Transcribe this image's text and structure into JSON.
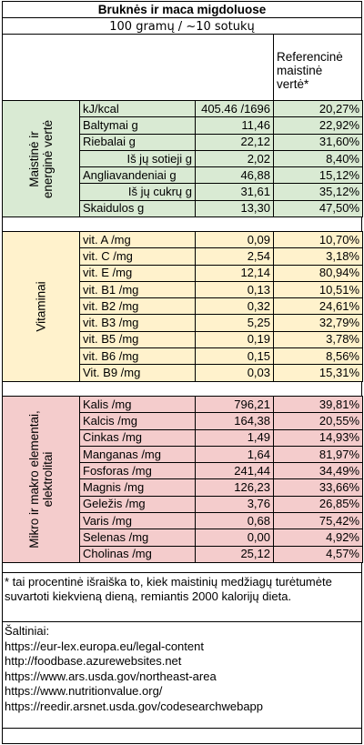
{
  "title": "Bruknės ir maca migdoluose",
  "subtitle": "100 gramų / ~10 sotukų",
  "ref_header": "Referencinė\nmaistinė\nvertė*",
  "groups": {
    "energy": "Maistinė ir\nenerginė vertė",
    "vitamins": "Vitaminai",
    "minerals": "Mikro ir makro elementai,\nelektrolitai"
  },
  "energy_rows": [
    {
      "name": "kJ/kcal",
      "value": "405.46 /1696",
      "pct": "20,27%",
      "indent": false
    },
    {
      "name": "Baltymai g",
      "value": "11,46",
      "pct": "22,92%",
      "indent": false
    },
    {
      "name": "Riebalai g",
      "value": "22,12",
      "pct": "31,60%",
      "indent": false
    },
    {
      "name": "Iš jų sotieji g",
      "value": "2,02",
      "pct": "8,40%",
      "indent": true
    },
    {
      "name": "Angliavandeniai g",
      "value": "46,88",
      "pct": "15,12%",
      "indent": false
    },
    {
      "name": "Iš jų cukrų g",
      "value": "31,61",
      "pct": "35,12%",
      "indent": true
    },
    {
      "name": "Skaidulos g",
      "value": "13,30",
      "pct": "47,50%",
      "indent": false
    }
  ],
  "vitamin_rows": [
    {
      "name": "vit. A /mg",
      "value": "0,09",
      "pct": "10,70%"
    },
    {
      "name": "vit. C /mg",
      "value": "2,54",
      "pct": "3,18%"
    },
    {
      "name": "vit. E /mg",
      "value": "12,14",
      "pct": "80,94%"
    },
    {
      "name": "vit. B1 /mg",
      "value": "0,13",
      "pct": "10,51%"
    },
    {
      "name": "vit. B2 /mg",
      "value": "0,32",
      "pct": "24,61%"
    },
    {
      "name": "vit. B3  /mg",
      "value": "5,25",
      "pct": "32,79%"
    },
    {
      "name": "vit. B5  /mg",
      "value": "0,19",
      "pct": "3,78%"
    },
    {
      "name": "vit. B6  /mg",
      "value": "0,15",
      "pct": "8,56%"
    },
    {
      "name": "Vit. B9 /mg",
      "value": "0,03",
      "pct": "15,31%"
    }
  ],
  "mineral_rows": [
    {
      "name": "Kalis /mg",
      "value": "796,21",
      "pct": "39,81%"
    },
    {
      "name": "Kalcis  /mg",
      "value": "164,38",
      "pct": "20,55%"
    },
    {
      "name": "Cinkas  /mg",
      "value": "1,49",
      "pct": "14,93%"
    },
    {
      "name": "Manganas /mg",
      "value": "1,64",
      "pct": "81,97%"
    },
    {
      "name": "Fosforas /mg",
      "value": "241,44",
      "pct": "34,49%"
    },
    {
      "name": "Magnis /mg",
      "value": "126,23",
      "pct": "33,66%"
    },
    {
      "name": "Geležis /mg",
      "value": "3,76",
      "pct": "26,85%"
    },
    {
      "name": "Varis /mg",
      "value": "0,68",
      "pct": "75,42%"
    },
    {
      "name": "Selenas /mg",
      "value": "0,00",
      "pct": "4,92%"
    },
    {
      "name": "Cholinas /mg",
      "value": "25,12",
      "pct": "4,57%"
    }
  ],
  "footnote": "* tai procentinė išraiška to, kiek maistinių medžiagų turėtumėte suvartoti kiekvieną dieną, remiantis 2000 kalorijų dieta.",
  "sources_title": "Šaltiniai:",
  "sources": [
    "https://eur-lex.europa.eu/legal-content",
    "http://foodbase.azurewebsites.net",
    "https://www.ars.usda.gov/northeast-area",
    "https://www.nutritionvalue.org/",
    "https://reedir.arsnet.usda.gov/codesearchwebapp"
  ]
}
